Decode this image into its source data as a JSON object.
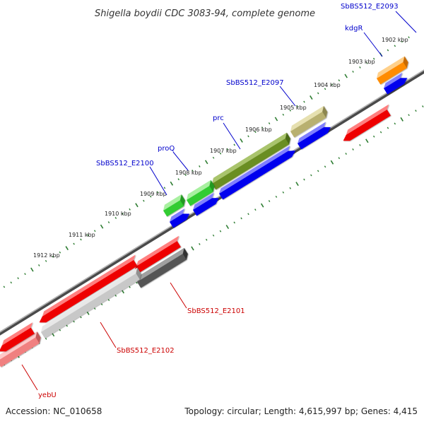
{
  "title": "Shigella boydii CDC 3083-94, complete genome",
  "footer": {
    "accession": "Accession: NC_010658",
    "summary": "Topology: circular; Length: 4,615,997 bp; Genes: 4,415"
  },
  "colors": {
    "forward_label": "#0000cc",
    "reverse_label": "#cc0000",
    "backbone": "#7a7a7a",
    "tick": "#2e7d32"
  },
  "ruler": {
    "labels": [
      "1902 kbp",
      "1903 kbp",
      "1904 kbp",
      "1905 kbp",
      "1906 kbp",
      "1907 kbp",
      "1908 kbp",
      "1909 kbp",
      "1910 kbp",
      "1911 kbp",
      "1912 kbp"
    ]
  },
  "labels": {
    "SbBS512_E2093": "SbBS512_E2093",
    "kdgR": "kdgR",
    "SbBS512_E2097": "SbBS512_E2097",
    "prc": "prc",
    "proQ": "proQ",
    "SbBS512_E2100": "SbBS512_E2100",
    "SbBS512_E2101": "SbBS512_E2101",
    "SbBS512_E2102": "SbBS512_E2102",
    "yebU": "yebU"
  }
}
